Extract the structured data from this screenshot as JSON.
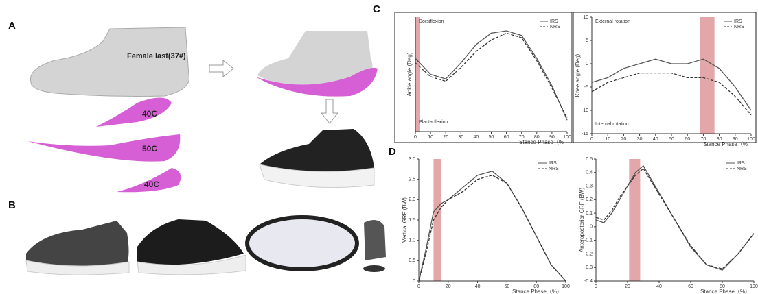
{
  "panels": {
    "a": "A",
    "b": "B",
    "c": "C",
    "d": "D"
  },
  "images": {
    "last": "Female last(37#)",
    "piece1": "40C",
    "piece2": "50C",
    "piece3": "40C"
  },
  "chart_data": [
    {
      "type": "line",
      "ylabel": "Ankle angle (Deg)",
      "xlabel": "Stance Phase（%",
      "annotations": [
        "Dorsiflexion",
        "Plantarflexion"
      ],
      "x": [
        0,
        10,
        20,
        30,
        40,
        50,
        60,
        70,
        80,
        90,
        100
      ],
      "series": [
        {
          "name": "IRS",
          "color": "#555555",
          "dashed": false,
          "values": [
            12,
            5,
            3,
            10,
            18,
            23,
            24,
            22,
            12,
            0,
            -15
          ]
        },
        {
          "name": "NRS",
          "color": "#333333",
          "dashed": true,
          "values": [
            10,
            4,
            2,
            8,
            15,
            20,
            23,
            21,
            11,
            -1,
            -14
          ]
        }
      ],
      "highlight": [
        0,
        3
      ],
      "highlight_color": "#d98a8c",
      "xlim": [
        0,
        100
      ],
      "ylim": [
        -20,
        30
      ],
      "xticks": [
        0,
        10,
        20,
        30,
        40,
        50,
        60,
        70,
        80,
        90,
        100
      ]
    },
    {
      "type": "line",
      "ylabel": "Knee angle (Deg)",
      "xlabel": "Stance Phase（%",
      "annotations": [
        "External rotation",
        "Internal rotation"
      ],
      "x": [
        0,
        10,
        20,
        30,
        40,
        50,
        60,
        70,
        80,
        90,
        100
      ],
      "series": [
        {
          "name": "IRS",
          "color": "#555555",
          "dashed": false,
          "values": [
            -4,
            -3,
            -1,
            0,
            1,
            0,
            0,
            1,
            -1,
            -5,
            -10
          ]
        },
        {
          "name": "NRS",
          "color": "#333333",
          "dashed": true,
          "values": [
            -6,
            -4,
            -3,
            -2,
            -2,
            -2,
            -3,
            -3,
            -4,
            -7,
            -11
          ]
        }
      ],
      "highlight": [
        68,
        77
      ],
      "highlight_color": "#d98a8c",
      "xlim": [
        0,
        100
      ],
      "ylim": [
        -15,
        10
      ],
      "xticks": [
        0,
        10,
        20,
        30,
        40,
        50,
        60,
        70,
        80,
        90,
        100
      ],
      "yticks": [
        10,
        5,
        0,
        -5,
        -10,
        -15
      ]
    },
    {
      "type": "line",
      "ylabel": "Vertical GRF (BW)",
      "xlabel": "Stance Phase（%）",
      "annotations": [],
      "x": [
        0,
        5,
        10,
        15,
        20,
        30,
        40,
        50,
        60,
        70,
        80,
        90,
        100
      ],
      "series": [
        {
          "name": "IRS",
          "color": "#555555",
          "dashed": false,
          "values": [
            0,
            0.8,
            1.7,
            1.9,
            2.0,
            2.3,
            2.6,
            2.7,
            2.4,
            1.8,
            1.1,
            0.4,
            0
          ]
        },
        {
          "name": "NRS",
          "color": "#333333",
          "dashed": true,
          "values": [
            0,
            0.7,
            1.5,
            1.8,
            2.0,
            2.2,
            2.5,
            2.6,
            2.4,
            1.8,
            1.1,
            0.4,
            0
          ]
        }
      ],
      "highlight": [
        10,
        15
      ],
      "highlight_color": "#d98a8c",
      "xlim": [
        0,
        100
      ],
      "ylim": [
        0,
        3
      ],
      "xticks": [
        0,
        20,
        40,
        60,
        80,
        100
      ],
      "yticks": [
        0,
        0.5,
        {
          "value": 1,
          "label": "1.0"
        },
        1.5,
        {
          "value": 2,
          "label": "2.0"
        },
        2.5,
        {
          "value": 3,
          "label": "3.0"
        }
      ]
    },
    {
      "type": "line",
      "ylabel": "Anteroposterior GRF (BW)",
      "xlabel": "Stance Phase（%）",
      "annotations": [],
      "x": [
        0,
        5,
        10,
        15,
        20,
        25,
        30,
        40,
        50,
        60,
        70,
        80,
        90,
        100
      ],
      "series": [
        {
          "name": "IRS",
          "color": "#555555",
          "dashed": false,
          "values": [
            0.05,
            0.03,
            0.1,
            0.2,
            0.3,
            0.4,
            0.45,
            0.25,
            0.05,
            -0.15,
            -0.28,
            -0.32,
            -0.2,
            -0.05
          ]
        },
        {
          "name": "NRS",
          "color": "#333333",
          "dashed": true,
          "values": [
            0.07,
            0.05,
            0.12,
            0.22,
            0.3,
            0.38,
            0.43,
            0.24,
            0.05,
            -0.14,
            -0.28,
            -0.31,
            -0.2,
            -0.05
          ]
        }
      ],
      "highlight": [
        21,
        28
      ],
      "highlight_color": "#d98a8c",
      "xlim": [
        0,
        100
      ],
      "ylim": [
        -0.4,
        0.5
      ],
      "xticks": [
        0,
        20,
        40,
        60,
        80,
        100
      ],
      "yticks": [
        -0.4,
        -0.3,
        -0.2,
        -0.1,
        0,
        0.1,
        0.2,
        0.3,
        0.4,
        0.5
      ]
    }
  ]
}
